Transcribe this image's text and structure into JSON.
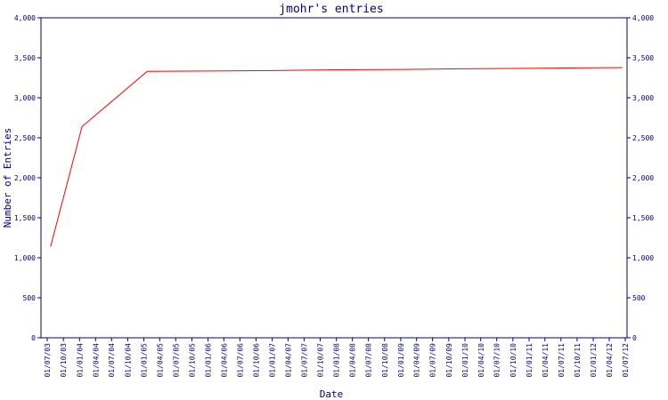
{
  "chart_data": {
    "type": "line",
    "title": "jmohr's entries",
    "xlabel": "Date",
    "ylabel": "Number of Entries",
    "ylim": [
      0,
      4000
    ],
    "y_ticks": [
      0,
      500,
      1000,
      1500,
      2000,
      2500,
      3000,
      3500,
      4000
    ],
    "y_tick_labels": [
      "0",
      "500",
      "1,000",
      "1,500",
      "2,000",
      "2,500",
      "3,000",
      "3,500",
      "4,000"
    ],
    "x_tick_labels": [
      "01/07/03",
      "01/10/03",
      "01/01/04",
      "01/04/04",
      "01/07/04",
      "01/10/04",
      "01/01/05",
      "01/04/05",
      "01/07/05",
      "01/10/05",
      "01/01/06",
      "01/04/06",
      "01/07/06",
      "01/10/06",
      "01/01/07",
      "01/04/07",
      "01/07/07",
      "01/10/07",
      "01/01/08",
      "01/04/08",
      "01/07/08",
      "01/10/08",
      "01/01/09",
      "01/04/09",
      "01/07/09",
      "01/10/09",
      "01/01/10",
      "01/04/10",
      "01/07/10",
      "01/10/10",
      "01/01/11",
      "01/04/11",
      "01/07/11",
      "01/10/11",
      "01/01/12",
      "01/04/12",
      "01/07/12"
    ],
    "grid": false,
    "colors": {
      "axis": "#000080",
      "line": "#ff0000",
      "background": "#ffffff"
    },
    "series": [
      {
        "x": [
          "2003-07-20",
          "2004-01-15",
          "2005-01-20",
          "2006-01-01",
          "2007-01-01",
          "2008-01-01",
          "2009-01-01",
          "2010-01-01",
          "2011-01-01",
          "2012-06-15"
        ],
        "values": [
          1140,
          2640,
          3330,
          3335,
          3340,
          3350,
          3355,
          3362,
          3368,
          3378
        ]
      }
    ]
  }
}
